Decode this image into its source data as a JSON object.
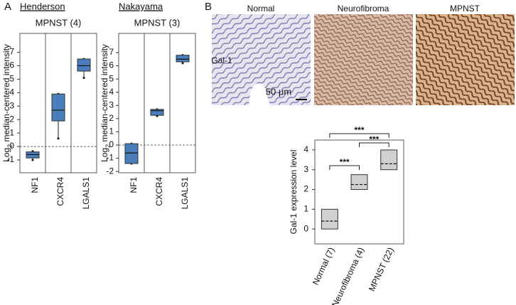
{
  "figure": {
    "panel_labels": [
      "A",
      "B"
    ],
    "images": {
      "row_label": "Gal-1",
      "columns": [
        "Normal",
        "Neurofibroma",
        "MPNST"
      ],
      "scale_bar": "50 μm"
    }
  },
  "chart_data": [
    {
      "type": "box",
      "title": "Henderson",
      "subtitle": "MPNST (4)",
      "ylabel": [
        "Log",
        "2",
        " median-centered intensity"
      ],
      "categories": [
        "NF1",
        "CXCR4",
        "LGALS1"
      ],
      "boxes": [
        {
          "min": -1.0,
          "q1": -0.85,
          "median": -0.6,
          "q3": -0.4,
          "max": -0.35
        },
        {
          "min": 0.6,
          "q1": 1.9,
          "median": 2.7,
          "q3": 3.9,
          "max": 3.9
        },
        {
          "min": 5.1,
          "q1": 5.6,
          "median": 6.0,
          "q3": 6.5,
          "max": 6.5
        }
      ],
      "color": "#4a7ebb",
      "ylim": [
        -1.95,
        8.4
      ],
      "yticks": [
        -1,
        0,
        1,
        2,
        3,
        4,
        5,
        6,
        7
      ],
      "refline": 0
    },
    {
      "type": "box",
      "title": "Nakayama",
      "subtitle": "MPNST (3)",
      "ylabel": [
        "Log",
        "2",
        " median-centered intensity"
      ],
      "categories": [
        "NF1",
        "CXCR4",
        "LGALS1"
      ],
      "boxes": [
        {
          "min": -1.4,
          "q1": -1.4,
          "median": -0.6,
          "q3": 0.1,
          "max": 0.1
        },
        {
          "min": 2.2,
          "q1": 2.25,
          "median": 2.6,
          "q3": 2.7,
          "max": 2.7
        },
        {
          "min": 6.2,
          "q1": 6.3,
          "median": 6.5,
          "q3": 6.8,
          "max": 6.8
        }
      ],
      "color": "#4a7ebb",
      "ylim": [
        -2.1,
        8.45
      ],
      "yticks": [
        -2,
        -1,
        0,
        1,
        2,
        3,
        4,
        5,
        6,
        7
      ],
      "refline": 0
    },
    {
      "type": "box",
      "ylabel": [
        "Gal-1 expression level"
      ],
      "categories": [
        "Normal (7)",
        "Neurofibroma (4)",
        "MPNST (22)"
      ],
      "boxes": [
        {
          "q1": 0,
          "median": 0.4,
          "q3": 1.0
        },
        {
          "q1": 2.0,
          "median": 2.25,
          "q3": 2.75
        },
        {
          "q1": 3.0,
          "median": 3.3,
          "q3": 4.0
        }
      ],
      "color": "#d0d0d0",
      "ylim": [
        -0.75,
        4.5
      ],
      "yticks": [
        0,
        1,
        2,
        3,
        4
      ],
      "annotations": [
        {
          "label": "***",
          "pair": [
            0,
            1
          ]
        },
        {
          "label": "***",
          "pair": [
            1,
            2
          ]
        },
        {
          "label": "***",
          "pair": [
            0,
            2
          ]
        }
      ]
    }
  ]
}
